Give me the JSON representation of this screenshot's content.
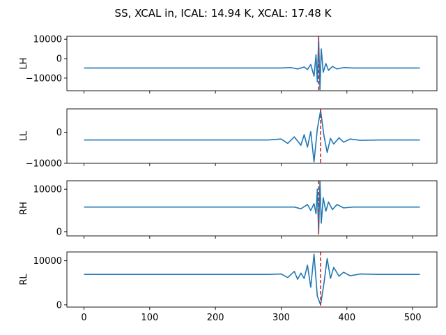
{
  "chart_data": {
    "type": "line",
    "title": "SS, XCAL in, ICAL: 14.94 K, XCAL: 17.48 K",
    "xlim": [
      -26,
      537
    ],
    "x_ticks": [
      0,
      100,
      200,
      300,
      400,
      500
    ],
    "x_tick_labels": [
      "0",
      "100",
      "200",
      "300",
      "400",
      "500"
    ],
    "grid": false,
    "line_color": "#1f77b4",
    "marker_color": "#d62728",
    "panels": [
      {
        "ylabel": "LH",
        "ylim": [
          -16500,
          11500
        ],
        "y_ticks": [
          -10000,
          0,
          10000
        ],
        "y_tick_labels": [
          "−10000",
          "0",
          "10000"
        ],
        "baseline": -4800,
        "marker_x": 357,
        "series": {
          "x": [
            0,
            100,
            200,
            280,
            300,
            315,
            325,
            335,
            340,
            345,
            350,
            353,
            355,
            357,
            359,
            361,
            364,
            368,
            372,
            378,
            385,
            395,
            410,
            450,
            511
          ],
          "y": [
            -4800,
            -4800,
            -4800,
            -4800,
            -4800,
            -4600,
            -5300,
            -4300,
            -5600,
            -3000,
            -9000,
            2000,
            -12000,
            11000,
            -16000,
            5000,
            -7000,
            -2500,
            -6000,
            -4000,
            -5300,
            -4600,
            -4800,
            -4800,
            -4800
          ]
        }
      },
      {
        "ylabel": "LL",
        "ylim": [
          -10000,
          7500
        ],
        "y_ticks": [
          -10000,
          0
        ],
        "y_tick_labels": [
          "−10000",
          "0"
        ],
        "baseline": -2500,
        "marker_x": 360,
        "series": {
          "x": [
            0,
            100,
            200,
            280,
            300,
            310,
            320,
            330,
            335,
            340,
            345,
            350,
            355,
            360,
            365,
            370,
            375,
            380,
            388,
            395,
            405,
            420,
            450,
            511
          ],
          "y": [
            -2500,
            -2500,
            -2500,
            -2500,
            -2200,
            -3600,
            -1500,
            -4200,
            -800,
            -4800,
            200,
            -9500,
            1000,
            7000,
            -1000,
            -6500,
            -2000,
            -3800,
            -1800,
            -3200,
            -2200,
            -2600,
            -2500,
            -2500
          ]
        }
      },
      {
        "ylabel": "RH",
        "ylim": [
          -1000,
          12000
        ],
        "y_ticks": [
          0,
          10000
        ],
        "y_tick_labels": [
          "0",
          "10000"
        ],
        "baseline": 5800,
        "marker_x": 357,
        "series": {
          "x": [
            0,
            100,
            200,
            280,
            300,
            320,
            330,
            340,
            345,
            350,
            353,
            355,
            357,
            359,
            361,
            364,
            368,
            372,
            378,
            385,
            395,
            410,
            450,
            511
          ],
          "y": [
            5800,
            5800,
            5800,
            5800,
            5800,
            5800,
            5400,
            6400,
            5000,
            6600,
            4200,
            10000,
            -500,
            12000,
            2000,
            8000,
            4800,
            7000,
            5200,
            6400,
            5600,
            5800,
            5800,
            5800
          ]
        }
      },
      {
        "ylabel": "RL",
        "ylim": [
          -500,
          12000
        ],
        "y_ticks": [
          0,
          10000
        ],
        "y_tick_labels": [
          "0",
          "10000"
        ],
        "baseline": 6900,
        "marker_x": 360,
        "series": {
          "x": [
            0,
            100,
            200,
            280,
            300,
            310,
            320,
            325,
            330,
            335,
            340,
            345,
            350,
            355,
            360,
            365,
            370,
            375,
            380,
            388,
            395,
            405,
            420,
            450,
            511
          ],
          "y": [
            6900,
            6900,
            6900,
            6900,
            7000,
            6200,
            7600,
            5800,
            7200,
            6000,
            9000,
            4000,
            11500,
            2000,
            0,
            4800,
            10500,
            6000,
            8500,
            6500,
            7400,
            6600,
            7000,
            6900,
            6900
          ]
        }
      }
    ]
  }
}
